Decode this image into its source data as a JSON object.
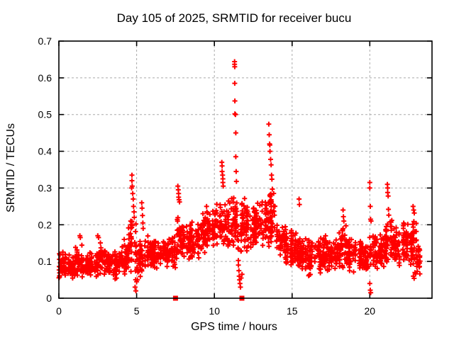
{
  "chart_data": {
    "type": "scatter",
    "title": "Day 105 of 2025, SRMTID for receiver bucu",
    "xlabel": "GPS time / hours",
    "ylabel": "SRMTID / TECUs",
    "series_name": "SRMTID",
    "xlim": [
      0,
      24
    ],
    "ylim": [
      0,
      0.7
    ],
    "xticks": [
      0,
      5,
      10,
      15,
      20
    ],
    "xtick_labels": [
      "0",
      "5",
      "10",
      "15",
      "20"
    ],
    "yticks": [
      0,
      0.1,
      0.2,
      0.3,
      0.4,
      0.5,
      0.6,
      0.7
    ],
    "ytick_labels": [
      "0",
      "0.1",
      "0.2",
      "0.3",
      "0.4",
      "0.5",
      "0.6",
      "0.7"
    ],
    "grid": {
      "visible": true,
      "style": "dashed",
      "color": "#aaaaaa"
    },
    "legend": "none",
    "marker": {
      "shape": "plus",
      "color": "#ff0000",
      "size": 7,
      "stroke": 2
    },
    "axis_color": "#000000",
    "seed": 105,
    "band_profile": [
      [
        0.0,
        0.5,
        0.05,
        0.13,
        46
      ],
      [
        0.5,
        1.0,
        0.05,
        0.12,
        46
      ],
      [
        1.0,
        1.5,
        0.05,
        0.15,
        46
      ],
      [
        1.5,
        2.0,
        0.05,
        0.12,
        46
      ],
      [
        2.0,
        2.5,
        0.05,
        0.13,
        46
      ],
      [
        2.5,
        3.0,
        0.06,
        0.16,
        46
      ],
      [
        3.0,
        3.5,
        0.06,
        0.13,
        46
      ],
      [
        3.5,
        4.0,
        0.05,
        0.13,
        46
      ],
      [
        4.0,
        4.5,
        0.06,
        0.15,
        44
      ],
      [
        4.5,
        5.0,
        0.04,
        0.24,
        44
      ],
      [
        5.0,
        5.5,
        0.05,
        0.16,
        44
      ],
      [
        5.5,
        6.0,
        0.07,
        0.17,
        44
      ],
      [
        6.0,
        6.5,
        0.07,
        0.18,
        44
      ],
      [
        6.5,
        7.0,
        0.08,
        0.16,
        44
      ],
      [
        7.0,
        7.5,
        0.08,
        0.17,
        44
      ],
      [
        7.5,
        8.0,
        0.09,
        0.23,
        44
      ],
      [
        8.0,
        8.5,
        0.1,
        0.22,
        44
      ],
      [
        8.5,
        9.0,
        0.1,
        0.22,
        44
      ],
      [
        9.0,
        9.5,
        0.11,
        0.24,
        44
      ],
      [
        9.5,
        10.0,
        0.12,
        0.25,
        44
      ],
      [
        10.0,
        10.5,
        0.13,
        0.27,
        44
      ],
      [
        10.5,
        11.0,
        0.12,
        0.28,
        44
      ],
      [
        11.0,
        11.5,
        0.13,
        0.3,
        44
      ],
      [
        11.5,
        12.0,
        0.1,
        0.28,
        44
      ],
      [
        12.0,
        12.5,
        0.12,
        0.26,
        44
      ],
      [
        12.5,
        13.0,
        0.13,
        0.27,
        44
      ],
      [
        13.0,
        13.5,
        0.12,
        0.28,
        44
      ],
      [
        13.5,
        14.0,
        0.13,
        0.3,
        44
      ],
      [
        14.0,
        14.5,
        0.1,
        0.22,
        44
      ],
      [
        14.5,
        15.0,
        0.08,
        0.2,
        44
      ],
      [
        15.0,
        15.5,
        0.08,
        0.18,
        44
      ],
      [
        15.5,
        16.0,
        0.07,
        0.18,
        44
      ],
      [
        16.0,
        16.5,
        0.05,
        0.17,
        44
      ],
      [
        16.5,
        17.0,
        0.06,
        0.18,
        44
      ],
      [
        17.0,
        17.5,
        0.07,
        0.18,
        44
      ],
      [
        17.5,
        18.0,
        0.07,
        0.17,
        44
      ],
      [
        18.0,
        18.5,
        0.08,
        0.2,
        44
      ],
      [
        18.5,
        19.0,
        0.07,
        0.17,
        44
      ],
      [
        19.0,
        19.5,
        0.07,
        0.16,
        44
      ],
      [
        19.5,
        20.0,
        0.06,
        0.16,
        44
      ],
      [
        20.0,
        20.5,
        0.07,
        0.19,
        44
      ],
      [
        20.5,
        21.0,
        0.08,
        0.18,
        44
      ],
      [
        21.0,
        21.5,
        0.09,
        0.22,
        44
      ],
      [
        21.5,
        22.0,
        0.08,
        0.2,
        44
      ],
      [
        22.0,
        22.5,
        0.09,
        0.22,
        44
      ],
      [
        22.5,
        23.0,
        0.08,
        0.24,
        48
      ],
      [
        23.0,
        23.25,
        0.05,
        0.15,
        22
      ]
    ],
    "outlier_points": [
      [
        1.35,
        0.17
      ],
      [
        1.38,
        0.165
      ],
      [
        2.5,
        0.17
      ],
      [
        2.55,
        0.165
      ],
      [
        4.2,
        0.16
      ],
      [
        4.62,
        0.21
      ],
      [
        4.68,
        0.3
      ],
      [
        4.7,
        0.335
      ],
      [
        4.7,
        0.32
      ],
      [
        4.72,
        0.305
      ],
      [
        4.75,
        0.285
      ],
      [
        4.78,
        0.27
      ],
      [
        4.8,
        0.25
      ],
      [
        4.83,
        0.235
      ],
      [
        4.85,
        0.22
      ],
      [
        4.9,
        0.03
      ],
      [
        4.95,
        0.02
      ],
      [
        5.0,
        0.045
      ],
      [
        5.05,
        0.05
      ],
      [
        5.33,
        0.26
      ],
      [
        5.35,
        0.245
      ],
      [
        5.38,
        0.225
      ],
      [
        5.4,
        0.205
      ],
      [
        5.42,
        0.19
      ],
      [
        7.65,
        0.305
      ],
      [
        7.68,
        0.295
      ],
      [
        7.7,
        0.285
      ],
      [
        7.7,
        0.275
      ],
      [
        7.73,
        0.268
      ],
      [
        7.76,
        0.262
      ],
      [
        9.5,
        0.25
      ],
      [
        9.52,
        0.235
      ],
      [
        10.48,
        0.37
      ],
      [
        10.5,
        0.36
      ],
      [
        10.5,
        0.345
      ],
      [
        10.53,
        0.335
      ],
      [
        10.55,
        0.325
      ],
      [
        10.55,
        0.315
      ],
      [
        10.57,
        0.305
      ],
      [
        11.3,
        0.644
      ],
      [
        11.3,
        0.637
      ],
      [
        11.31,
        0.63
      ],
      [
        11.31,
        0.585
      ],
      [
        11.32,
        0.537
      ],
      [
        11.32,
        0.502
      ],
      [
        11.36,
        0.5
      ],
      [
        11.38,
        0.45
      ],
      [
        11.38,
        0.385
      ],
      [
        11.4,
        0.345
      ],
      [
        11.42,
        0.318
      ],
      [
        11.55,
        0.09
      ],
      [
        11.58,
        0.075
      ],
      [
        11.6,
        0.06
      ],
      [
        11.62,
        0.05
      ],
      [
        11.65,
        0.04
      ],
      [
        11.68,
        0.03
      ],
      [
        11.72,
        0.055
      ],
      [
        11.78,
        0.065
      ],
      [
        13.5,
        0.474
      ],
      [
        13.53,
        0.445
      ],
      [
        13.55,
        0.42
      ],
      [
        13.57,
        0.417
      ],
      [
        13.58,
        0.4
      ],
      [
        13.62,
        0.378
      ],
      [
        13.65,
        0.363
      ],
      [
        13.68,
        0.335
      ],
      [
        13.7,
        0.324
      ],
      [
        13.73,
        0.297
      ],
      [
        15.45,
        0.27
      ],
      [
        15.47,
        0.255
      ],
      [
        18.28,
        0.24
      ],
      [
        18.3,
        0.222
      ],
      [
        18.33,
        0.21
      ],
      [
        20.0,
        0.315
      ],
      [
        20.0,
        0.3
      ],
      [
        20.03,
        0.25
      ],
      [
        20.05,
        0.215
      ],
      [
        20.08,
        0.21
      ],
      [
        20.0,
        0.04
      ],
      [
        20.03,
        0.022
      ],
      [
        20.06,
        0.015
      ],
      [
        21.13,
        0.31
      ],
      [
        21.15,
        0.3
      ],
      [
        21.15,
        0.288
      ],
      [
        21.18,
        0.278
      ],
      [
        21.2,
        0.242
      ],
      [
        21.22,
        0.226
      ],
      [
        22.78,
        0.25
      ],
      [
        22.82,
        0.24
      ],
      [
        22.86,
        0.232
      ],
      [
        22.8,
        0.06
      ],
      [
        22.85,
        0.054
      ],
      [
        22.9,
        0.07
      ],
      [
        22.95,
        0.066
      ]
    ],
    "zero_markers": [
      7.5,
      11.77
    ]
  }
}
